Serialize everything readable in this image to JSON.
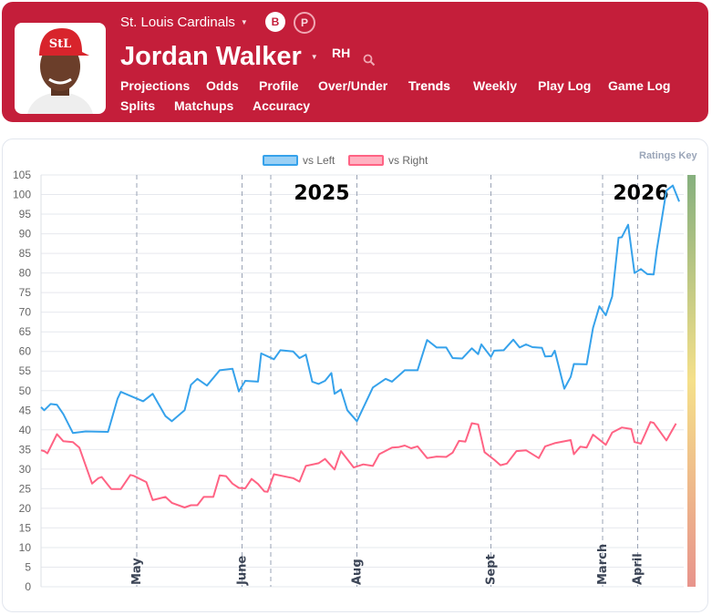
{
  "header": {
    "team": "St. Louis Cardinals",
    "toggle": [
      "B",
      "P"
    ],
    "player_name": "Jordan Walker",
    "handedness": "RH",
    "nav": [
      "Projections",
      "Odds",
      "Profile",
      "Over/Under",
      "Trends",
      "Weekly",
      "Play Log",
      "Game Log",
      "Splits",
      "Matchups",
      "Accuracy"
    ],
    "active_nav": "Trends",
    "brand_color": "#c41e3a"
  },
  "chart": {
    "ratings_key": "Ratings Key"
  },
  "chart_data": {
    "type": "line",
    "xlabel": "",
    "ylabel": "",
    "xlim": [
      0,
      200
    ],
    "ylim": [
      0,
      105
    ],
    "yticks": [
      0,
      5,
      10,
      15,
      20,
      25,
      30,
      35,
      40,
      45,
      50,
      55,
      60,
      65,
      70,
      75,
      80,
      85,
      90,
      95,
      100,
      105
    ],
    "grid": true,
    "legend": "top-center",
    "month_markers": [
      {
        "label": "May",
        "x": 30
      },
      {
        "label": "June",
        "x": 63
      },
      {
        "label": "",
        "x": 72
      },
      {
        "label": "Aug",
        "x": 99
      },
      {
        "label": "Sept",
        "x": 141
      },
      {
        "label": "March",
        "x": 176
      },
      {
        "label": "April",
        "x": 187
      }
    ],
    "season_labels": [
      {
        "label": "2025",
        "x": 88
      },
      {
        "label": "2026",
        "x": 188
      }
    ],
    "series": [
      {
        "name": "vs Left",
        "color": "#36a2eb",
        "points": [
          [
            0,
            45.8
          ],
          [
            1,
            45
          ],
          [
            3,
            46.6
          ],
          [
            5,
            46.4
          ],
          [
            7,
            44
          ],
          [
            10,
            39.2
          ],
          [
            14,
            39.6
          ],
          [
            21,
            39.5
          ],
          [
            24,
            48
          ],
          [
            25,
            49.7
          ],
          [
            32,
            47.3
          ],
          [
            35,
            49.2
          ],
          [
            39,
            43.5
          ],
          [
            41,
            42.2
          ],
          [
            45,
            45
          ],
          [
            47,
            51.5
          ],
          [
            49,
            53
          ],
          [
            52,
            51.3
          ],
          [
            56,
            55.2
          ],
          [
            60,
            55.6
          ],
          [
            62,
            49.8
          ],
          [
            64,
            52.5
          ],
          [
            68,
            52.3
          ],
          [
            69,
            59.5
          ],
          [
            73,
            58
          ],
          [
            75,
            60.3
          ],
          [
            79,
            60
          ],
          [
            81,
            58.3
          ],
          [
            83,
            59.2
          ],
          [
            85,
            52.3
          ],
          [
            87,
            51.7
          ],
          [
            89,
            52.5
          ],
          [
            91,
            54.5
          ],
          [
            92,
            49.2
          ],
          [
            94,
            50.3
          ],
          [
            96,
            45
          ],
          [
            99,
            42.2
          ],
          [
            104,
            50.8
          ],
          [
            108,
            53
          ],
          [
            110,
            52.3
          ],
          [
            114,
            55.2
          ],
          [
            118,
            55.2
          ],
          [
            121,
            62.9
          ],
          [
            124,
            61
          ],
          [
            127,
            61
          ],
          [
            129,
            58.3
          ],
          [
            132,
            58.2
          ],
          [
            135,
            60.8
          ],
          [
            137,
            59.3
          ],
          [
            138,
            61.8
          ],
          [
            141,
            58.6
          ],
          [
            142,
            60.2
          ],
          [
            145,
            60.3
          ],
          [
            148,
            63
          ],
          [
            150,
            61
          ],
          [
            152,
            61.8
          ],
          [
            154,
            61.1
          ],
          [
            157,
            60.9
          ],
          [
            158,
            58.7
          ],
          [
            160,
            58.8
          ],
          [
            161,
            60.2
          ],
          [
            164,
            50.5
          ],
          [
            166,
            53.5
          ],
          [
            167,
            56.8
          ],
          [
            171,
            56.7
          ],
          [
            173,
            66
          ],
          [
            175,
            71.5
          ],
          [
            177,
            69.2
          ],
          [
            179,
            74
          ],
          [
            181,
            89
          ],
          [
            182,
            89.1
          ],
          [
            184,
            92.3
          ],
          [
            186,
            80
          ],
          [
            188,
            81
          ],
          [
            190,
            79.7
          ],
          [
            192,
            79.6
          ],
          [
            193,
            86
          ],
          [
            196,
            101
          ],
          [
            198,
            102.3
          ],
          [
            200,
            98.2
          ]
        ]
      },
      {
        "name": "vs Right",
        "color": "#ff6384",
        "points": [
          [
            0,
            34.8
          ],
          [
            1,
            34.6
          ],
          [
            2,
            34
          ],
          [
            5,
            38.9
          ],
          [
            7,
            37.1
          ],
          [
            10,
            36.9
          ],
          [
            12,
            35.5
          ],
          [
            16,
            26.3
          ],
          [
            18,
            27.7
          ],
          [
            19,
            28
          ],
          [
            22,
            24.9
          ],
          [
            25,
            24.9
          ],
          [
            28,
            28.5
          ],
          [
            29,
            28.3
          ],
          [
            33,
            26.7
          ],
          [
            35,
            22.1
          ],
          [
            39,
            22.9
          ],
          [
            41,
            21.4
          ],
          [
            45,
            20.2
          ],
          [
            47,
            20.8
          ],
          [
            49,
            20.8
          ],
          [
            51,
            22.9
          ],
          [
            54,
            22.9
          ],
          [
            56,
            28.4
          ],
          [
            58,
            28.2
          ],
          [
            60,
            26.3
          ],
          [
            62,
            25.2
          ],
          [
            64,
            25.1
          ],
          [
            66,
            27.5
          ],
          [
            68,
            26.2
          ],
          [
            70,
            24.3
          ],
          [
            71,
            24.2
          ],
          [
            73,
            28.7
          ],
          [
            79,
            27.7
          ],
          [
            81,
            26.8
          ],
          [
            83,
            30.8
          ],
          [
            87,
            31.5
          ],
          [
            89,
            32.6
          ],
          [
            92,
            29.9
          ],
          [
            94,
            34.6
          ],
          [
            98,
            30.4
          ],
          [
            101,
            31.2
          ],
          [
            104,
            30.8
          ],
          [
            106,
            33.8
          ],
          [
            110,
            35.5
          ],
          [
            112,
            35.6
          ],
          [
            114,
            36
          ],
          [
            116,
            35.3
          ],
          [
            118,
            35.8
          ],
          [
            121,
            32.8
          ],
          [
            124,
            33.2
          ],
          [
            127,
            33.1
          ],
          [
            129,
            34.2
          ],
          [
            131,
            37.2
          ],
          [
            133,
            37
          ],
          [
            135,
            41.7
          ],
          [
            137,
            41.4
          ],
          [
            139,
            34.3
          ],
          [
            142,
            32.4
          ],
          [
            144,
            31
          ],
          [
            146,
            31.4
          ],
          [
            149,
            34.6
          ],
          [
            152,
            34.8
          ],
          [
            156,
            32.8
          ],
          [
            158,
            35.8
          ],
          [
            161,
            36.6
          ],
          [
            166,
            37.4
          ],
          [
            167,
            33.8
          ],
          [
            169,
            35.7
          ],
          [
            171,
            35.5
          ],
          [
            173,
            38.8
          ],
          [
            177,
            36.2
          ],
          [
            179,
            39.3
          ],
          [
            182,
            40.6
          ],
          [
            185,
            40.2
          ],
          [
            186,
            36.9
          ],
          [
            188,
            36.5
          ],
          [
            191,
            42
          ],
          [
            192,
            41.8
          ],
          [
            196,
            37.3
          ],
          [
            199,
            41.6
          ]
        ]
      }
    ]
  }
}
